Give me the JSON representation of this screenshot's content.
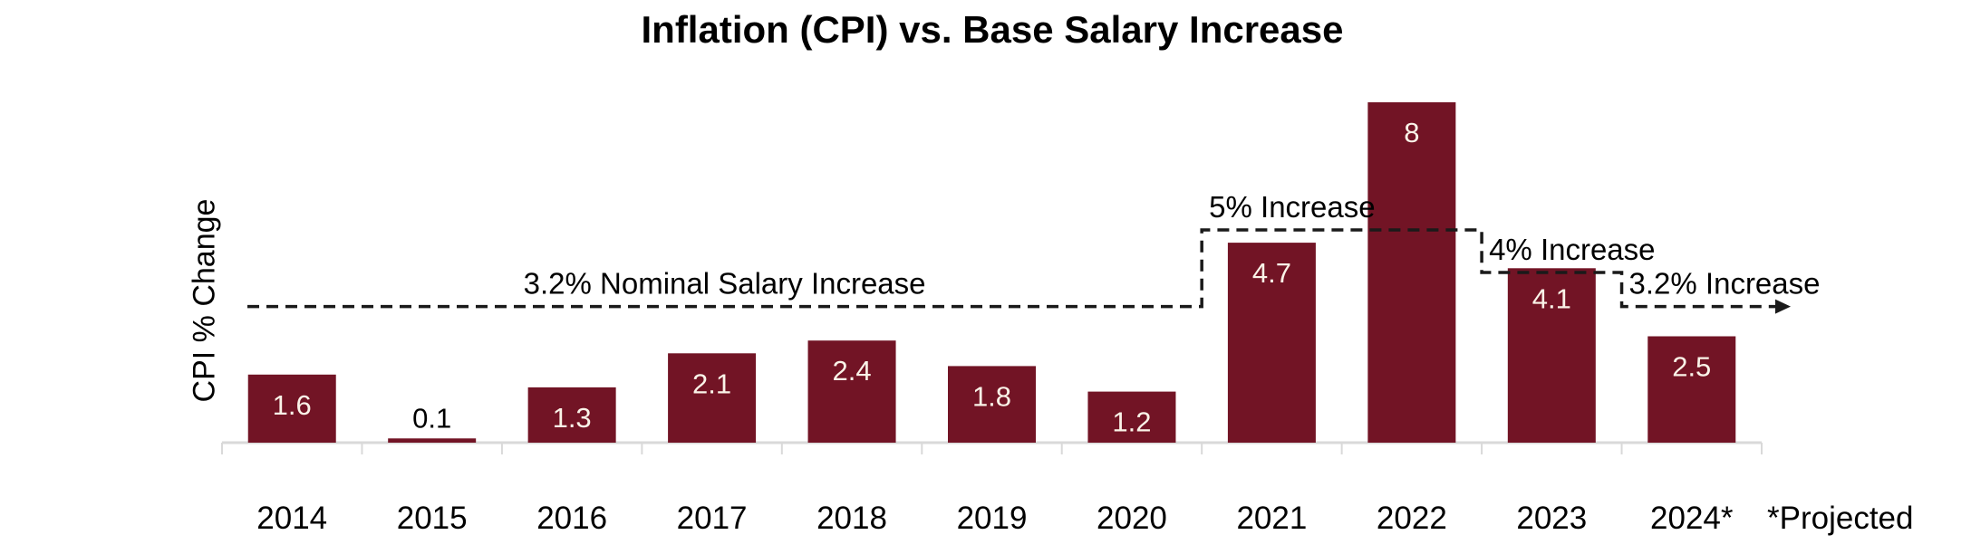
{
  "page": {
    "background": "#FFFFFF",
    "text_color": "#000000"
  },
  "chart_data": {
    "type": "bar",
    "title": "Inflation (CPI) vs. Base Salary Increase",
    "ylabel": "CPI % Change",
    "xlabel": "",
    "categories": [
      "2014",
      "2015",
      "2016",
      "2017",
      "2018",
      "2019",
      "2020",
      "2021",
      "2022",
      "2023",
      "2024*"
    ],
    "values": [
      1.6,
      0.1,
      1.3,
      2.1,
      2.4,
      1.8,
      1.2,
      4.7,
      8,
      4.1,
      2.5
    ],
    "footnote": "*Projected",
    "ylim": [
      0,
      8.5
    ],
    "grid": false,
    "legend": "none",
    "bar_color": "#721425",
    "bar_label_color": "#FAF3E8",
    "outside_label_color": "#000000",
    "axis_color": "#D9D9D9",
    "annotation_color": "#000000",
    "salary_line": {
      "color": "#1A1A1A",
      "style": "dashed",
      "arrow_end": true,
      "segments": [
        {
          "categories": [
            "2014",
            "2020"
          ],
          "level": 3.2,
          "label": "3.2% Nominal Salary Increase",
          "label_align": "center"
        },
        {
          "categories": [
            "2021",
            "2022"
          ],
          "level": 5.0,
          "label": "5% Increase",
          "label_align": "start"
        },
        {
          "categories": [
            "2023",
            "2023"
          ],
          "level": 4.0,
          "label": "4% Increase",
          "label_align": "start"
        },
        {
          "categories": [
            "2024*",
            "2024*"
          ],
          "level": 3.2,
          "label": "3.2% Increase",
          "label_align": "start"
        }
      ]
    }
  }
}
